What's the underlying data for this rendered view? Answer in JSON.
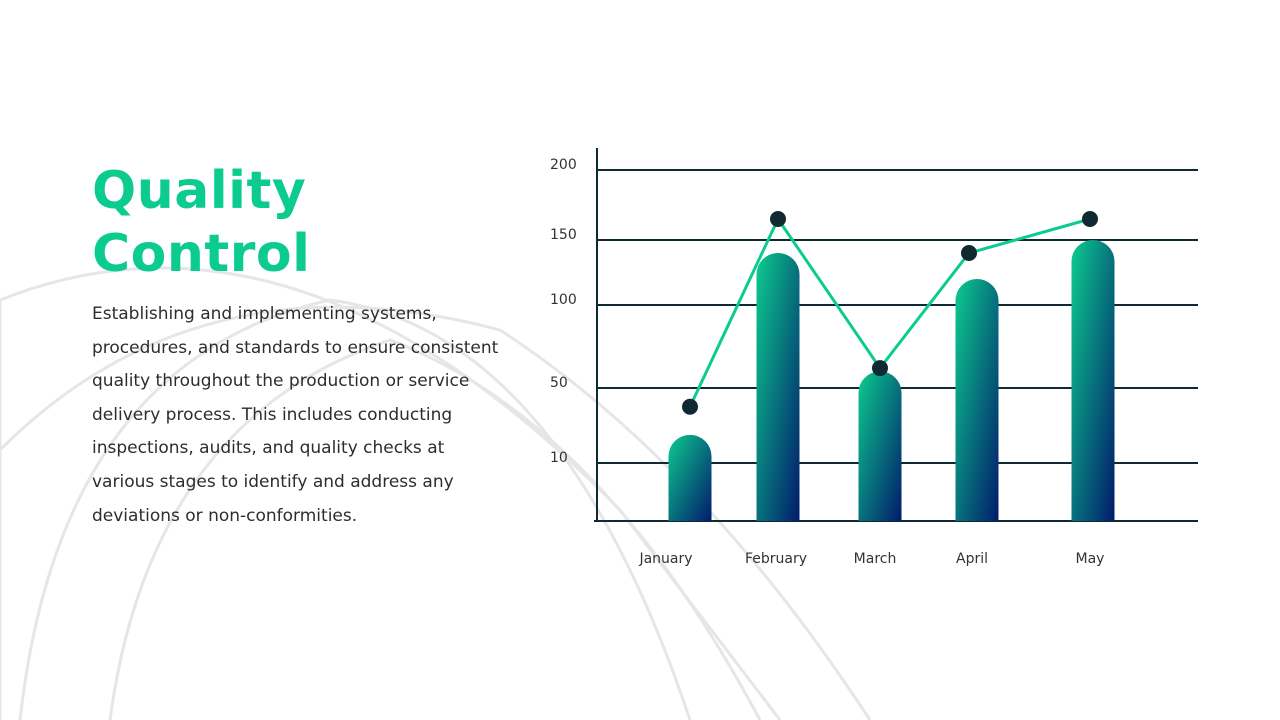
{
  "slide": {
    "title_line1": "Quality",
    "title_line2": "Control",
    "body": "Establishing and implementing systems, procedures, and standards to ensure consistent quality throughout the production or service delivery process. This includes conducting inspections, audits, and quality checks at various stages to identify and address any deviations or non-conformities."
  },
  "colors": {
    "accent": "#0ccb8e",
    "bar_top": "#0ccb8e",
    "bar_bottom": "#021b6b",
    "axis": "#0f2a33",
    "marker": "#0f2a33",
    "line": "#0ccb8e"
  },
  "chart_data": {
    "type": "bar",
    "categories": [
      "January",
      "February",
      "March",
      "April",
      "May"
    ],
    "y_ticks": [
      10,
      50,
      100,
      150,
      200
    ],
    "series": [
      {
        "type": "bar",
        "values": [
          25,
          140,
          60,
          120,
          150
        ]
      },
      {
        "type": "line",
        "values": [
          40,
          165,
          62,
          140,
          165
        ]
      }
    ],
    "grid": true,
    "legend": "none"
  }
}
